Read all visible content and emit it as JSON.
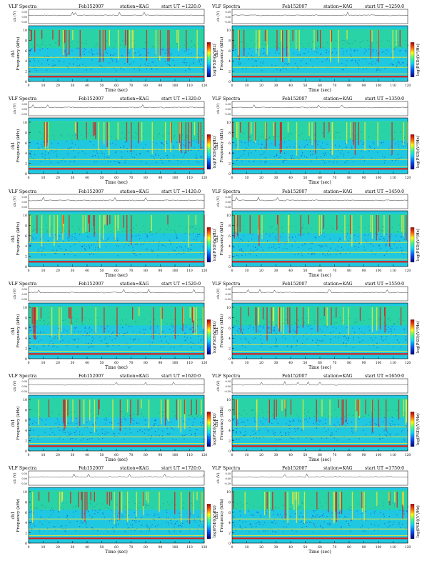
{
  "figure": {
    "panels": [
      {
        "title": "VLF Spectra",
        "date": "Feb152007",
        "station": "station=KAG",
        "start": "start UT =1220:0"
      },
      {
        "title": "VLF Spectra",
        "date": "Feb152007",
        "station": "station=KAG",
        "start": "start UT =1250:0"
      },
      {
        "title": "VLF Spectra",
        "date": "Feb152007",
        "station": "station=KAG",
        "start": "start UT =1320:0"
      },
      {
        "title": "VLF Spectra",
        "date": "Feb152007",
        "station": "station=KAG",
        "start": "start UT =1350:0"
      },
      {
        "title": "VLF Spectra",
        "date": "Feb152007",
        "station": "station=KAG",
        "start": "start UT =1420:0"
      },
      {
        "title": "VLF Spectra",
        "date": "Feb152007",
        "station": "station=KAG",
        "start": "start UT =1450:0"
      },
      {
        "title": "VLF Spectra",
        "date": "Feb152007",
        "station": "station=KAG",
        "start": "start UT =1520:0"
      },
      {
        "title": "VLF Spectra",
        "date": "Feb152007",
        "station": "station=KAG",
        "start": "start UT =1550:0"
      },
      {
        "title": "VLF Spectra",
        "date": "Feb152007",
        "station": "station=KAG",
        "start": "start UT =1620:0"
      },
      {
        "title": "VLF Spectra",
        "date": "Feb152007",
        "station": "station=KAG",
        "start": "start UT =1650:0"
      },
      {
        "title": "VLF Spectra",
        "date": "Feb152007",
        "station": "station=KAG",
        "start": "start UT =1720:0"
      },
      {
        "title": "VLF Spectra",
        "date": "Feb152007",
        "station": "station=KAG",
        "start": "start UT =1750:0"
      }
    ],
    "waveform_ylabel": "ch (V)",
    "waveform_ticks": [
      "0.30",
      "0.00",
      "-0.30"
    ],
    "spec_ylabel": "Frequency (kHz)",
    "channel_label": "ch1",
    "y_ticks": [
      "0",
      "2",
      "4",
      "6",
      "8",
      "10"
    ],
    "x_ticks": [
      "0",
      "10",
      "20",
      "30",
      "40",
      "50",
      "60",
      "70",
      "80",
      "90",
      "100",
      "110",
      "120"
    ],
    "xlabel": "Time (sec)",
    "colorbar_label": "log(PSD)(V²/Hz)",
    "colorbar_ticks": [
      "-",
      "-"
    ],
    "colors": {
      "spectrogram_background": "#1fc8e0",
      "noise_dark": "#1a4fd0",
      "signal_hot": "#d62020",
      "signal_warm": "#f2e830",
      "signal_mid": "#37e060"
    }
  },
  "chart_data": {
    "type": "heatmap",
    "title": "VLF Spectra",
    "xlabel": "Time (sec)",
    "ylabel": "Frequency (kHz)",
    "xlim": [
      0,
      120
    ],
    "ylim": [
      0,
      10
    ],
    "colorbar_label": "log(PSD)(V²/Hz)",
    "panels": [
      "start UT =1220:0",
      "start UT =1250:0",
      "start UT =1320:0",
      "start UT =1350:0",
      "start UT =1420:0",
      "start UT =1450:0",
      "start UT =1520:0",
      "start UT =1550:0",
      "start UT =1620:0",
      "start UT =1650:0",
      "start UT =1720:0",
      "start UT =1750:0"
    ],
    "grid": false
  }
}
